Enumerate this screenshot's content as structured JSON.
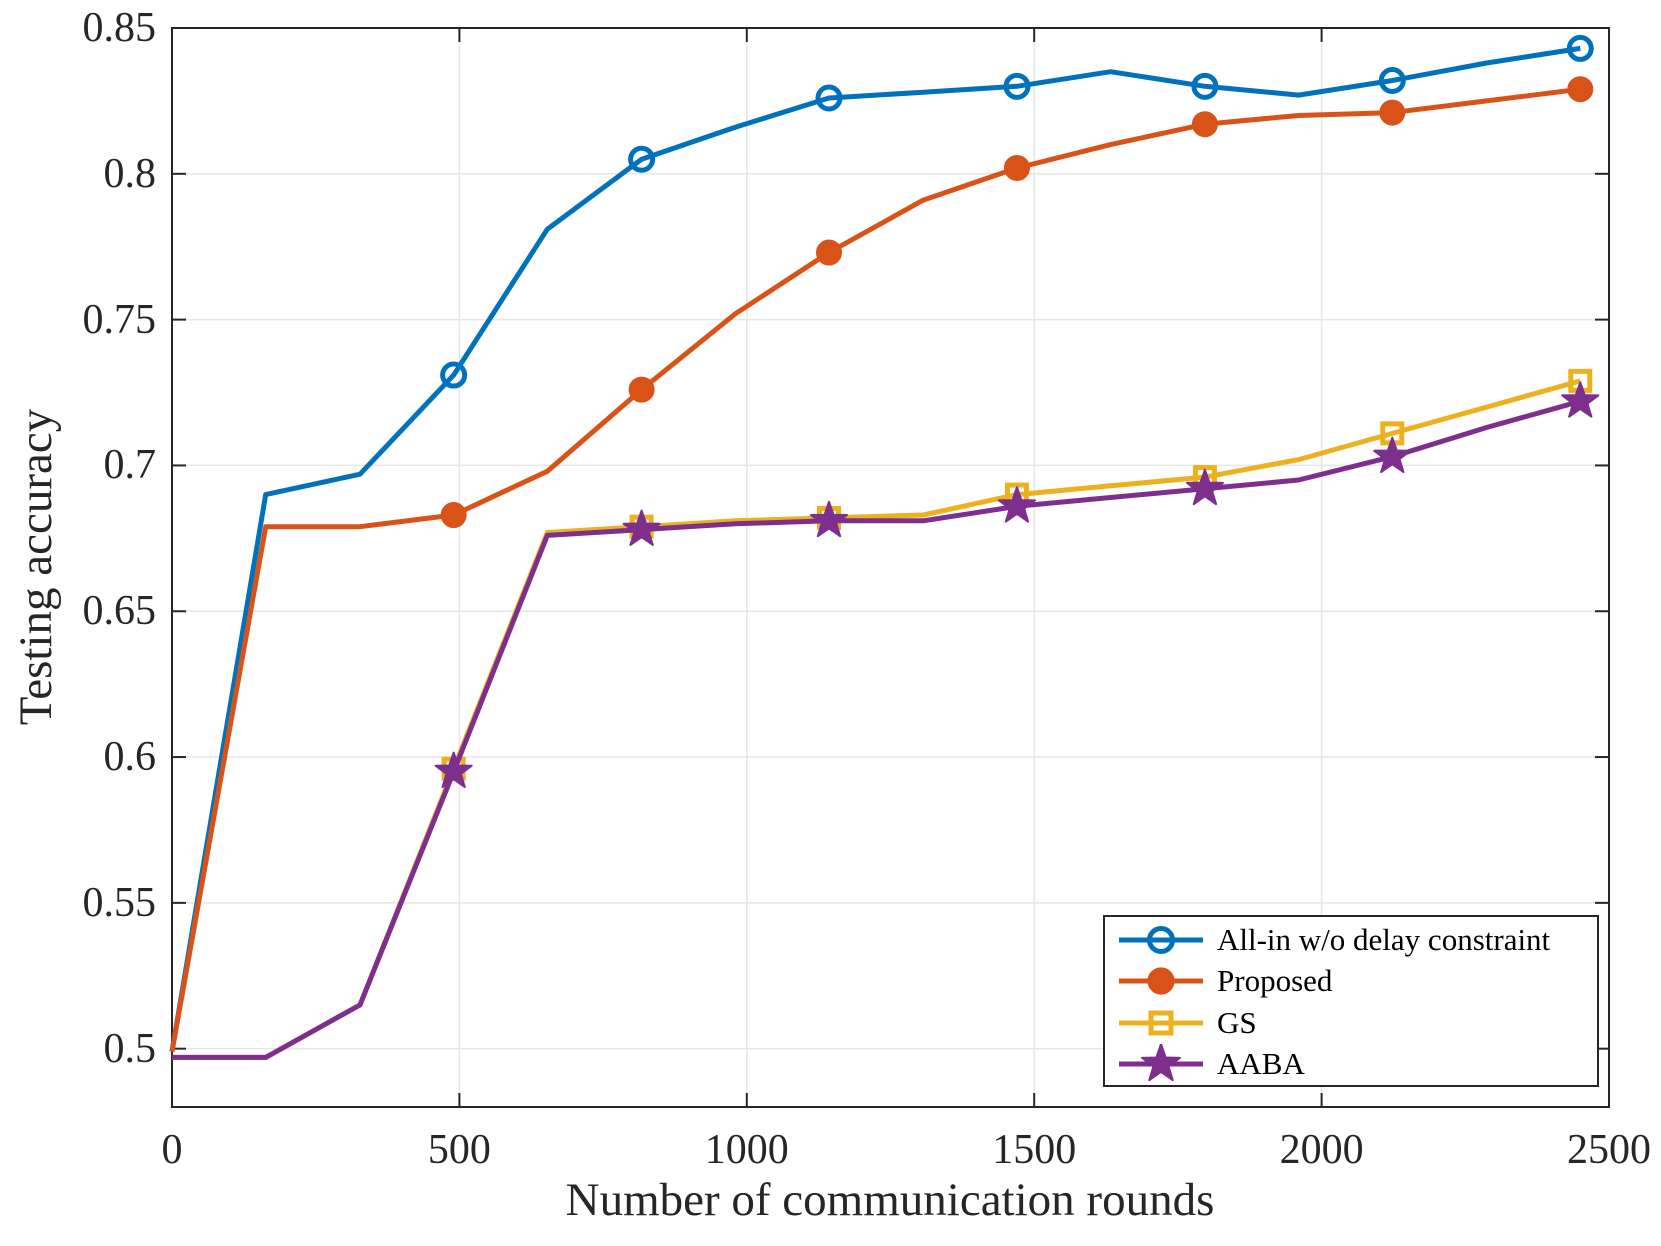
{
  "chart_data": {
    "type": "line",
    "title": "",
    "xlabel": "Number of communication rounds",
    "ylabel": "Testing accuracy",
    "xlim": [
      0,
      2500
    ],
    "ylim": [
      0.48,
      0.85
    ],
    "xticks": [
      0,
      500,
      1000,
      1500,
      2000,
      2500
    ],
    "yticks": [
      0.5,
      0.55,
      0.6,
      0.65,
      0.7,
      0.75,
      0.8,
      0.85
    ],
    "grid": true,
    "legend_position": "lower right",
    "x": [
      0,
      163,
      327,
      490,
      653,
      817,
      980,
      1143,
      1307,
      1470,
      1633,
      1797,
      1960,
      2123,
      2287,
      2450
    ],
    "marker_indices": [
      3,
      5,
      7,
      9,
      11,
      13,
      15
    ],
    "series": [
      {
        "name": "All-in w/o delay constraint",
        "color": "#0072BD",
        "marker": "circle-open",
        "values": [
          0.499,
          0.69,
          0.697,
          0.731,
          0.781,
          0.805,
          0.816,
          0.826,
          0.828,
          0.83,
          0.835,
          0.83,
          0.827,
          0.832,
          0.838,
          0.843
        ]
      },
      {
        "name": "Proposed",
        "color": "#D95319",
        "marker": "circle-filled",
        "values": [
          0.499,
          0.679,
          0.679,
          0.683,
          0.698,
          0.726,
          0.752,
          0.773,
          0.791,
          0.802,
          0.81,
          0.817,
          0.82,
          0.821,
          0.825,
          0.829
        ]
      },
      {
        "name": "GS",
        "color": "#EDB120",
        "marker": "square-open",
        "values": [
          0.497,
          0.497,
          0.515,
          0.596,
          0.677,
          0.679,
          0.681,
          0.682,
          0.683,
          0.69,
          0.693,
          0.696,
          0.702,
          0.711,
          0.72,
          0.729
        ]
      },
      {
        "name": "AABA",
        "color": "#7E2F8E",
        "marker": "star-filled",
        "values": [
          0.497,
          0.497,
          0.515,
          0.595,
          0.676,
          0.678,
          0.68,
          0.681,
          0.681,
          0.686,
          0.689,
          0.692,
          0.695,
          0.703,
          0.713,
          0.722
        ]
      }
    ]
  },
  "style": {
    "grid_color": "#e6e6e6",
    "axis_color": "#262626",
    "background": "#ffffff"
  }
}
